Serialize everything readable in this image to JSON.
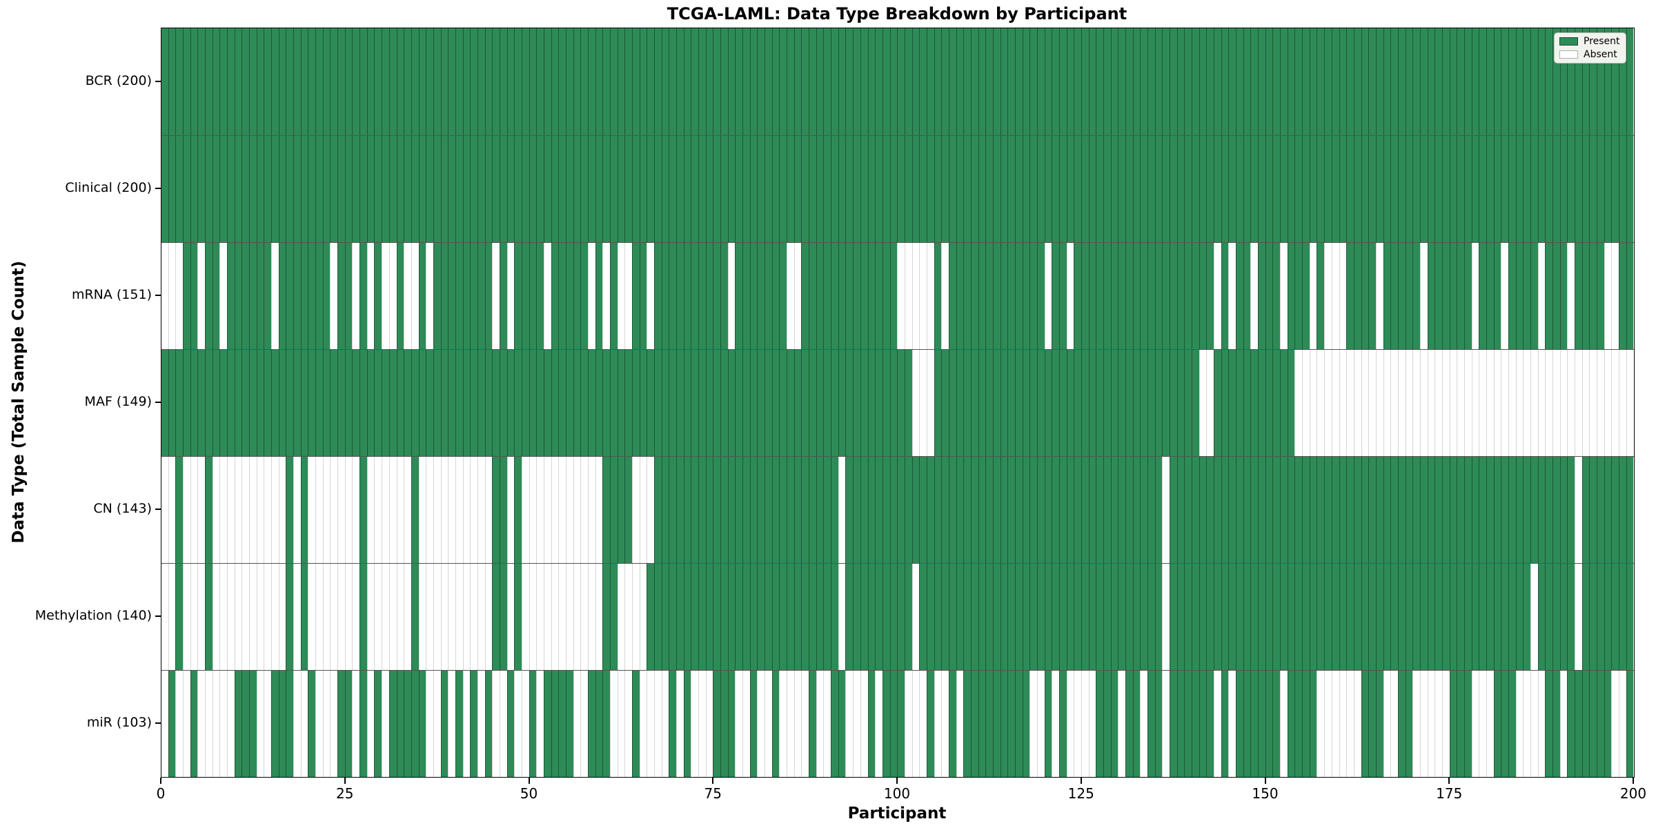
{
  "title": "TCGA-LAML: Data Type Breakdown by Participant",
  "xlabel": "Participant",
  "ylabel": "Data Type (Total Sample Count)",
  "legend": {
    "present_label": "Present",
    "absent_label": "Absent"
  },
  "colors": {
    "present": "#2e8b57",
    "absent": "#ffffff"
  },
  "chart_data": {
    "type": "heatmap",
    "x_axis_label": "Participant",
    "y_axis_label": "Data Type (Total Sample Count)",
    "n_participants": 200,
    "x_ticks": [
      0,
      25,
      50,
      75,
      100,
      125,
      150,
      175,
      200
    ],
    "value_legend": {
      "1": "Present",
      "0": "Absent"
    },
    "rows": [
      {
        "label": "BCR (200)",
        "name": "BCR",
        "total": 200,
        "absent": []
      },
      {
        "label": "Clinical (200)",
        "name": "Clinical",
        "total": 200,
        "absent": []
      },
      {
        "label": "mRNA (151)",
        "name": "mRNA",
        "total": 151,
        "absent": [
          0,
          1,
          2,
          5,
          8,
          15,
          23,
          26,
          28,
          30,
          31,
          33,
          34,
          36,
          45,
          47,
          52,
          58,
          60,
          62,
          63,
          66,
          77,
          85,
          86,
          100,
          101,
          102,
          103,
          104,
          106,
          120,
          123,
          143,
          145,
          148,
          152,
          156,
          158,
          159,
          160,
          165,
          171,
          178,
          182,
          187,
          191,
          196,
          197
        ]
      },
      {
        "label": "MAF (149)",
        "name": "MAF",
        "total": 149,
        "absent": [
          102,
          103,
          104,
          141,
          142,
          154,
          155,
          156,
          157,
          158,
          159,
          160,
          161,
          162,
          163,
          164,
          165,
          166,
          167,
          168,
          169,
          170,
          171,
          172,
          173,
          174,
          175,
          176,
          177,
          178,
          179,
          180,
          181,
          182,
          183,
          184,
          185,
          186,
          187,
          188,
          189,
          190,
          191,
          192,
          193,
          194,
          195,
          196,
          197,
          198,
          199
        ]
      },
      {
        "label": "CN (143)",
        "name": "CN",
        "total": 143,
        "absent": [
          0,
          1,
          3,
          4,
          5,
          7,
          8,
          9,
          10,
          11,
          12,
          13,
          14,
          15,
          16,
          18,
          20,
          21,
          22,
          23,
          24,
          25,
          26,
          28,
          29,
          30,
          31,
          32,
          33,
          35,
          36,
          37,
          38,
          39,
          40,
          41,
          42,
          43,
          44,
          47,
          49,
          50,
          51,
          52,
          53,
          54,
          55,
          56,
          57,
          58,
          59,
          64,
          65,
          66,
          92,
          136,
          192
        ]
      },
      {
        "label": "Methylation (140)",
        "name": "Methylation",
        "total": 140,
        "absent": [
          0,
          1,
          3,
          4,
          5,
          7,
          8,
          9,
          10,
          11,
          12,
          13,
          14,
          15,
          16,
          18,
          20,
          21,
          22,
          23,
          24,
          25,
          26,
          28,
          29,
          30,
          31,
          32,
          33,
          35,
          36,
          37,
          38,
          39,
          40,
          41,
          42,
          43,
          44,
          47,
          49,
          50,
          51,
          52,
          53,
          54,
          55,
          56,
          57,
          58,
          59,
          62,
          63,
          64,
          65,
          92,
          102,
          136,
          186,
          192
        ]
      },
      {
        "label": "miR (103)",
        "name": "miR",
        "total": 103,
        "absent": [
          0,
          2,
          3,
          5,
          6,
          7,
          8,
          9,
          13,
          14,
          18,
          19,
          21,
          22,
          23,
          26,
          28,
          30,
          36,
          37,
          39,
          41,
          43,
          45,
          46,
          48,
          49,
          51,
          56,
          57,
          61,
          62,
          63,
          65,
          66,
          67,
          68,
          70,
          72,
          73,
          74,
          78,
          79,
          81,
          82,
          84,
          85,
          86,
          87,
          89,
          90,
          93,
          94,
          95,
          97,
          101,
          102,
          103,
          105,
          106,
          108,
          118,
          119,
          121,
          123,
          124,
          125,
          126,
          130,
          133,
          136,
          143,
          145,
          152,
          157,
          158,
          159,
          160,
          161,
          162,
          166,
          167,
          170,
          171,
          172,
          173,
          174,
          178,
          179,
          180,
          184,
          185,
          186,
          187,
          190,
          197,
          198
        ]
      }
    ]
  }
}
